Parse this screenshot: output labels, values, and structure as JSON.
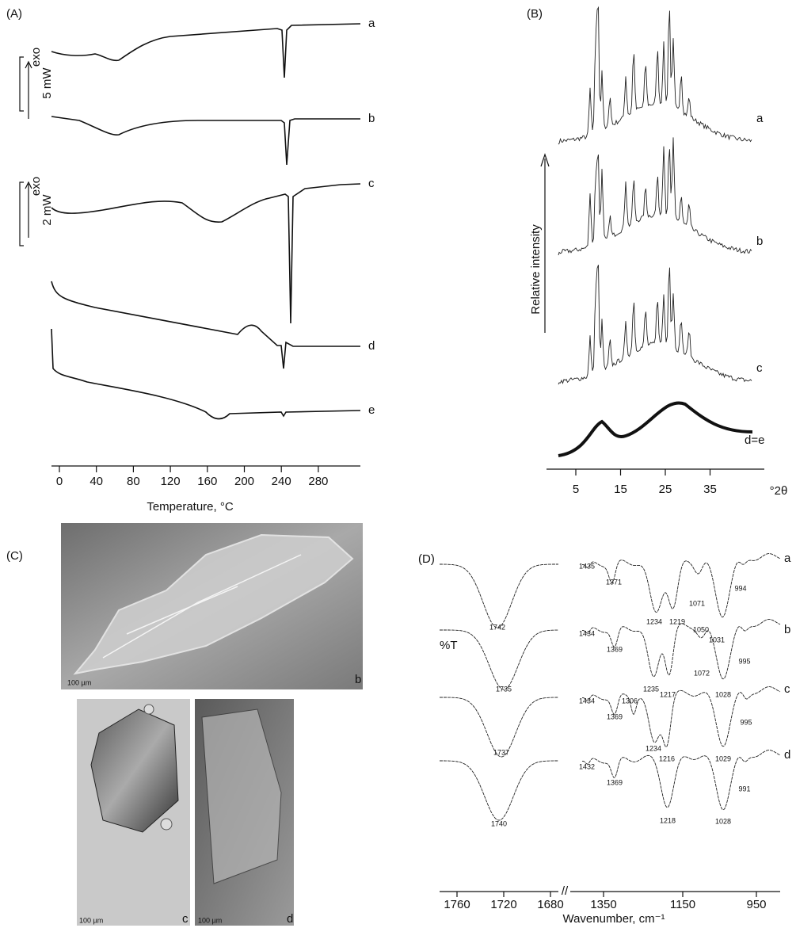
{
  "panels": {
    "A": {
      "label": "(A)",
      "curves": [
        "a",
        "b",
        "c",
        "d",
        "e"
      ],
      "scale_bars": [
        {
          "direction": "exo",
          "unit": "5 mW"
        },
        {
          "direction": "exo",
          "unit": "2 mW"
        }
      ],
      "xticks": [
        0,
        40,
        80,
        120,
        160,
        200,
        240,
        280
      ],
      "xlabel": "Temperature, °C"
    },
    "B": {
      "label": "(B)",
      "ylabel": "Relative intensity",
      "curves": [
        "a",
        "b",
        "c",
        "d=e"
      ],
      "xticks": [
        5,
        15,
        25,
        35
      ],
      "xlabel": "°2θ"
    },
    "C": {
      "label": "(C)",
      "photos": [
        {
          "label": "b",
          "scale": "100 µm"
        },
        {
          "label": "c",
          "scale": "100 µm"
        },
        {
          "label": "d",
          "scale": "100 µm"
        }
      ]
    },
    "D": {
      "label": "(D)",
      "ylabel": "%T",
      "curves": [
        {
          "label": "a",
          "peaks": [
            1742,
            1435,
            1371,
            1234,
            1219,
            1071,
            1050,
            1031,
            994
          ]
        },
        {
          "label": "b",
          "peaks": [
            1735,
            1434,
            1369,
            1235,
            1217,
            1072,
            1028,
            995
          ]
        },
        {
          "label": "c",
          "peaks": [
            1737,
            1434,
            1306,
            1369,
            1234,
            1216,
            1029,
            995
          ]
        },
        {
          "label": "d",
          "peaks": [
            1740,
            1432,
            1369,
            1218,
            1028,
            991
          ]
        }
      ],
      "axis_break": "//",
      "xticks_left": [
        1760,
        1720,
        1680
      ],
      "xticks_right": [
        1350,
        1150,
        950
      ],
      "xlabel": "Wavenumber, cm⁻¹"
    }
  }
}
